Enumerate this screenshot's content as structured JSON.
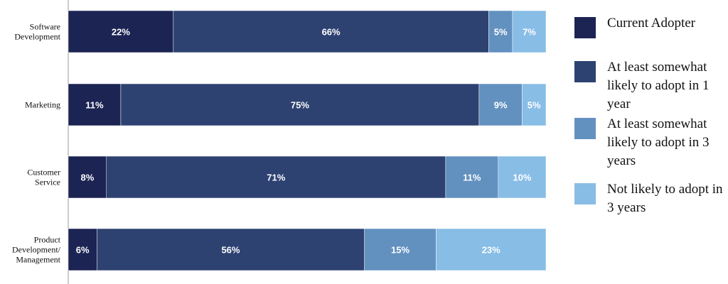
{
  "chart_data": {
    "type": "bar",
    "orientation": "horizontal",
    "stacked": true,
    "title": "",
    "xlabel": "",
    "ylabel": "",
    "xlim": [
      0,
      100
    ],
    "grid": false,
    "legend_position": "right",
    "categories": [
      [
        "Software",
        "Development"
      ],
      [
        "Marketing"
      ],
      [
        "Customer",
        "Service"
      ],
      [
        "Product",
        "Development/",
        "Management"
      ]
    ],
    "series": [
      {
        "name": "Current Adopter",
        "color": "#1c2454",
        "values": [
          22,
          11,
          8,
          6
        ],
        "labels": [
          "22%",
          "11%",
          "8%",
          "6%"
        ]
      },
      {
        "name": "At least somewhat likely to adopt in 1 year",
        "color": "#2e4272",
        "values": [
          66,
          75,
          71,
          56
        ],
        "labels": [
          "66%",
          "75%",
          "71%",
          "56%"
        ]
      },
      {
        "name": "At least somewhat likely to adopt in 3 years",
        "color": "#6291c0",
        "values": [
          5,
          9,
          11,
          15
        ],
        "labels": [
          "5%",
          "9%",
          "11%",
          "15%"
        ]
      },
      {
        "name": "Not likely to adopt in 3 years",
        "color": "#88bde6",
        "values": [
          7,
          5,
          10,
          23
        ],
        "labels": [
          "7%",
          "5%",
          "10%",
          "23%"
        ]
      }
    ]
  }
}
